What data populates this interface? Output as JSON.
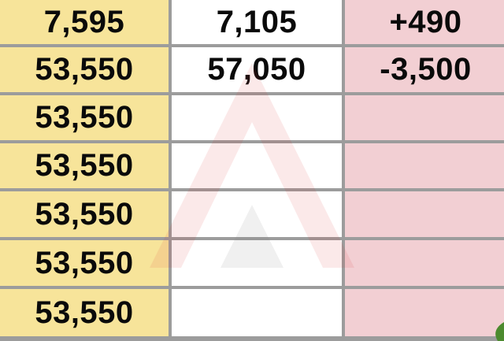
{
  "table": {
    "rows": [
      [
        "7,595",
        "7,105",
        "+490"
      ],
      [
        "53,550",
        "57,050",
        "-3,500"
      ],
      [
        "53,550",
        "",
        ""
      ],
      [
        "53,550",
        "",
        ""
      ],
      [
        "53,550",
        "",
        ""
      ],
      [
        "53,550",
        "",
        ""
      ],
      [
        "53,550",
        "",
        ""
      ]
    ]
  },
  "colors": {
    "col1_bg": "#f7e49a",
    "col2_bg": "#ffffff",
    "col3_bg": "#f2cfd3",
    "gridline": "#9c9c9c"
  },
  "icons": {
    "watermark": "tfex-logo-watermark-icon",
    "corner": "leaf-icon"
  }
}
